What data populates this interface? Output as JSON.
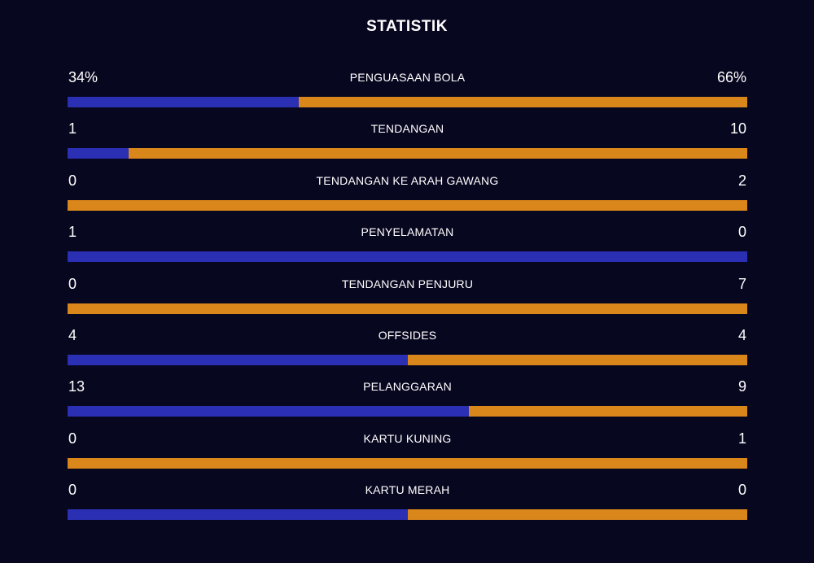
{
  "title": "STATISTIK",
  "colors": {
    "background": "#080720",
    "home": "#2a2fb3",
    "away": "#d9861b"
  },
  "stats": [
    {
      "label": "PENGUASAAN BOLA",
      "home": "34%",
      "away": "66%",
      "home_share": 0.34
    },
    {
      "label": "TENDANGAN",
      "home": "1",
      "away": "10",
      "home_share": 0.09
    },
    {
      "label": "TENDANGAN KE ARAH GAWANG",
      "home": "0",
      "away": "2",
      "home_share": 0.0
    },
    {
      "label": "PENYELAMATAN",
      "home": "1",
      "away": "0",
      "home_share": 1.0
    },
    {
      "label": "TENDANGAN PENJURU",
      "home": "0",
      "away": "7",
      "home_share": 0.0
    },
    {
      "label": "OFFSIDES",
      "home": "4",
      "away": "4",
      "home_share": 0.5
    },
    {
      "label": "PELANGGARAN",
      "home": "13",
      "away": "9",
      "home_share": 0.59
    },
    {
      "label": "KARTU KUNING",
      "home": "0",
      "away": "1",
      "home_share": 0.0
    },
    {
      "label": "KARTU MERAH",
      "home": "0",
      "away": "0",
      "home_share": 0.5
    }
  ]
}
